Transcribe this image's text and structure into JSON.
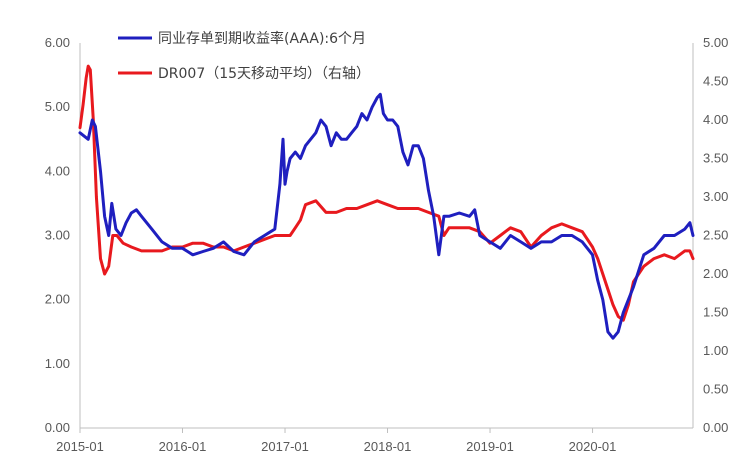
{
  "chart_data": {
    "type": "line",
    "title": "",
    "xlabel": "",
    "ylabel": "",
    "y2label": "",
    "x_ticks": [
      "2015-01",
      "2016-01",
      "2017-01",
      "2018-01",
      "2019-01",
      "2020-01"
    ],
    "x_range": [
      2015.0,
      2020.98
    ],
    "ylim": [
      0,
      6
    ],
    "y_ticks": [
      "0.00",
      "1.00",
      "2.00",
      "3.00",
      "4.00",
      "5.00",
      "6.00"
    ],
    "y2lim": [
      0,
      5
    ],
    "y2_ticks": [
      "0.00",
      "0.50",
      "1.00",
      "1.50",
      "2.00",
      "2.50",
      "3.00",
      "3.50",
      "4.00",
      "4.50",
      "5.00"
    ],
    "grid": false,
    "legend_position": "top",
    "series": [
      {
        "name": "同业存单到期收益率(AAA):6个月",
        "axis": "left",
        "color": "#1f1fbf",
        "x": [
          2015.0,
          2015.08,
          2015.12,
          2015.15,
          2015.2,
          2015.24,
          2015.28,
          2015.31,
          2015.35,
          2015.4,
          2015.45,
          2015.5,
          2015.55,
          2015.6,
          2015.7,
          2015.8,
          2015.9,
          2016.0,
          2016.05,
          2016.1,
          2016.2,
          2016.3,
          2016.4,
          2016.5,
          2016.6,
          2016.7,
          2016.75,
          2016.8,
          2016.85,
          2016.9,
          2016.95,
          2016.98,
          2017.0,
          2017.02,
          2017.05,
          2017.1,
          2017.15,
          2017.2,
          2017.3,
          2017.35,
          2017.4,
          2017.45,
          2017.5,
          2017.55,
          2017.6,
          2017.65,
          2017.7,
          2017.75,
          2017.8,
          2017.85,
          2017.9,
          2017.93,
          2017.96,
          2018.0,
          2018.05,
          2018.1,
          2018.15,
          2018.2,
          2018.25,
          2018.3,
          2018.35,
          2018.4,
          2018.45,
          2018.5,
          2018.55,
          2018.6,
          2018.7,
          2018.8,
          2018.85,
          2018.9,
          2019.0,
          2019.1,
          2019.2,
          2019.3,
          2019.4,
          2019.5,
          2019.6,
          2019.7,
          2019.8,
          2019.9,
          2020.0,
          2020.05,
          2020.1,
          2020.15,
          2020.2,
          2020.25,
          2020.3,
          2020.35,
          2020.4,
          2020.5,
          2020.6,
          2020.7,
          2020.8,
          2020.9,
          2020.95,
          2020.98
        ],
        "y": [
          4.6,
          4.5,
          4.8,
          4.7,
          4.0,
          3.3,
          3.0,
          3.5,
          3.1,
          3.0,
          3.2,
          3.35,
          3.4,
          3.3,
          3.1,
          2.9,
          2.8,
          2.8,
          2.75,
          2.7,
          2.75,
          2.8,
          2.9,
          2.75,
          2.7,
          2.9,
          2.95,
          3.0,
          3.05,
          3.1,
          3.8,
          4.5,
          3.8,
          4.0,
          4.2,
          4.3,
          4.2,
          4.4,
          4.6,
          4.8,
          4.7,
          4.4,
          4.6,
          4.5,
          4.5,
          4.6,
          4.7,
          4.9,
          4.8,
          5.0,
          5.15,
          5.2,
          4.9,
          4.8,
          4.8,
          4.7,
          4.3,
          4.1,
          4.4,
          4.4,
          4.2,
          3.7,
          3.3,
          2.7,
          3.3,
          3.3,
          3.35,
          3.3,
          3.4,
          3.0,
          2.9,
          2.8,
          3.0,
          2.9,
          2.8,
          2.9,
          2.9,
          3.0,
          3.0,
          2.9,
          2.7,
          2.3,
          2.0,
          1.5,
          1.4,
          1.5,
          1.8,
          2.0,
          2.2,
          2.7,
          2.8,
          3.0,
          3.0,
          3.1,
          3.2,
          3.0
        ]
      },
      {
        "name": "DR007（15天移动平均）（右轴）",
        "axis": "right",
        "color": "#e8191e",
        "x": [
          2015.0,
          2015.03,
          2015.06,
          2015.08,
          2015.1,
          2015.13,
          2015.16,
          2015.2,
          2015.24,
          2015.28,
          2015.32,
          2015.36,
          2015.42,
          2015.5,
          2015.6,
          2015.7,
          2015.8,
          2015.9,
          2016.0,
          2016.1,
          2016.2,
          2016.3,
          2016.4,
          2016.5,
          2016.6,
          2016.7,
          2016.8,
          2016.9,
          2017.0,
          2017.05,
          2017.1,
          2017.15,
          2017.2,
          2017.3,
          2017.4,
          2017.5,
          2017.6,
          2017.7,
          2017.8,
          2017.9,
          2018.0,
          2018.1,
          2018.2,
          2018.3,
          2018.4,
          2018.5,
          2018.55,
          2018.6,
          2018.7,
          2018.8,
          2018.9,
          2019.0,
          2019.1,
          2019.2,
          2019.3,
          2019.4,
          2019.5,
          2019.6,
          2019.7,
          2019.8,
          2019.9,
          2020.0,
          2020.05,
          2020.1,
          2020.15,
          2020.2,
          2020.25,
          2020.3,
          2020.35,
          2020.4,
          2020.5,
          2020.6,
          2020.7,
          2020.8,
          2020.9,
          2020.95,
          2020.98
        ],
        "y": [
          3.9,
          4.2,
          4.55,
          4.7,
          4.65,
          4.0,
          3.0,
          2.2,
          2.0,
          2.1,
          2.5,
          2.5,
          2.4,
          2.35,
          2.3,
          2.3,
          2.3,
          2.35,
          2.35,
          2.4,
          2.4,
          2.35,
          2.35,
          2.3,
          2.35,
          2.4,
          2.45,
          2.5,
          2.5,
          2.5,
          2.6,
          2.7,
          2.9,
          2.95,
          2.8,
          2.8,
          2.85,
          2.85,
          2.9,
          2.95,
          2.9,
          2.85,
          2.85,
          2.85,
          2.8,
          2.75,
          2.5,
          2.6,
          2.6,
          2.6,
          2.55,
          2.4,
          2.5,
          2.6,
          2.55,
          2.35,
          2.5,
          2.6,
          2.65,
          2.6,
          2.55,
          2.35,
          2.2,
          2.0,
          1.8,
          1.6,
          1.45,
          1.4,
          1.6,
          1.9,
          2.1,
          2.2,
          2.25,
          2.2,
          2.3,
          2.3,
          2.2
        ]
      }
    ]
  }
}
